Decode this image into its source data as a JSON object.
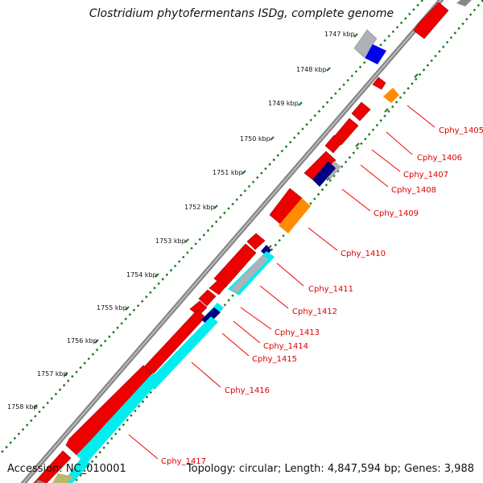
{
  "title": "Clostridium phytofermentans ISDg, complete genome",
  "footer": {
    "accession": "Accession: NC_010001",
    "summary": "Topology: circular; Length: 4,847,594 bp; Genes: 3,988"
  },
  "ruler_labels": [
    "1747 kbp",
    "1748 kbp",
    "1749 kbp",
    "1750 kbp",
    "1751 kbp",
    "1752 kbp",
    "1753 kbp",
    "1754 kbp",
    "1755 kbp",
    "1756 kbp",
    "1757 kbp",
    "1758 kbp"
  ],
  "gene_labels": [
    "Cphy_1405",
    "Cphy_1406",
    "Cphy_1407",
    "Cphy_1408",
    "Cphy_1409",
    "Cphy_1410",
    "Cphy_1411",
    "Cphy_1412",
    "Cphy_1413",
    "Cphy_1414",
    "Cphy_1415",
    "Cphy_1416",
    "Cphy_1417"
  ],
  "colors": {
    "backbone": "#888888",
    "gene_cds": "#ee0000",
    "gc_track": "#1e7a1e",
    "label_line": "#ee0000",
    "label_text": "#dd0000",
    "cog_orange": "#ff8c00",
    "cog_blue": "#0000ee",
    "cog_navy": "#000080",
    "cog_cyan": "#00eeee",
    "cog_grey": "#b0b0b8"
  }
}
